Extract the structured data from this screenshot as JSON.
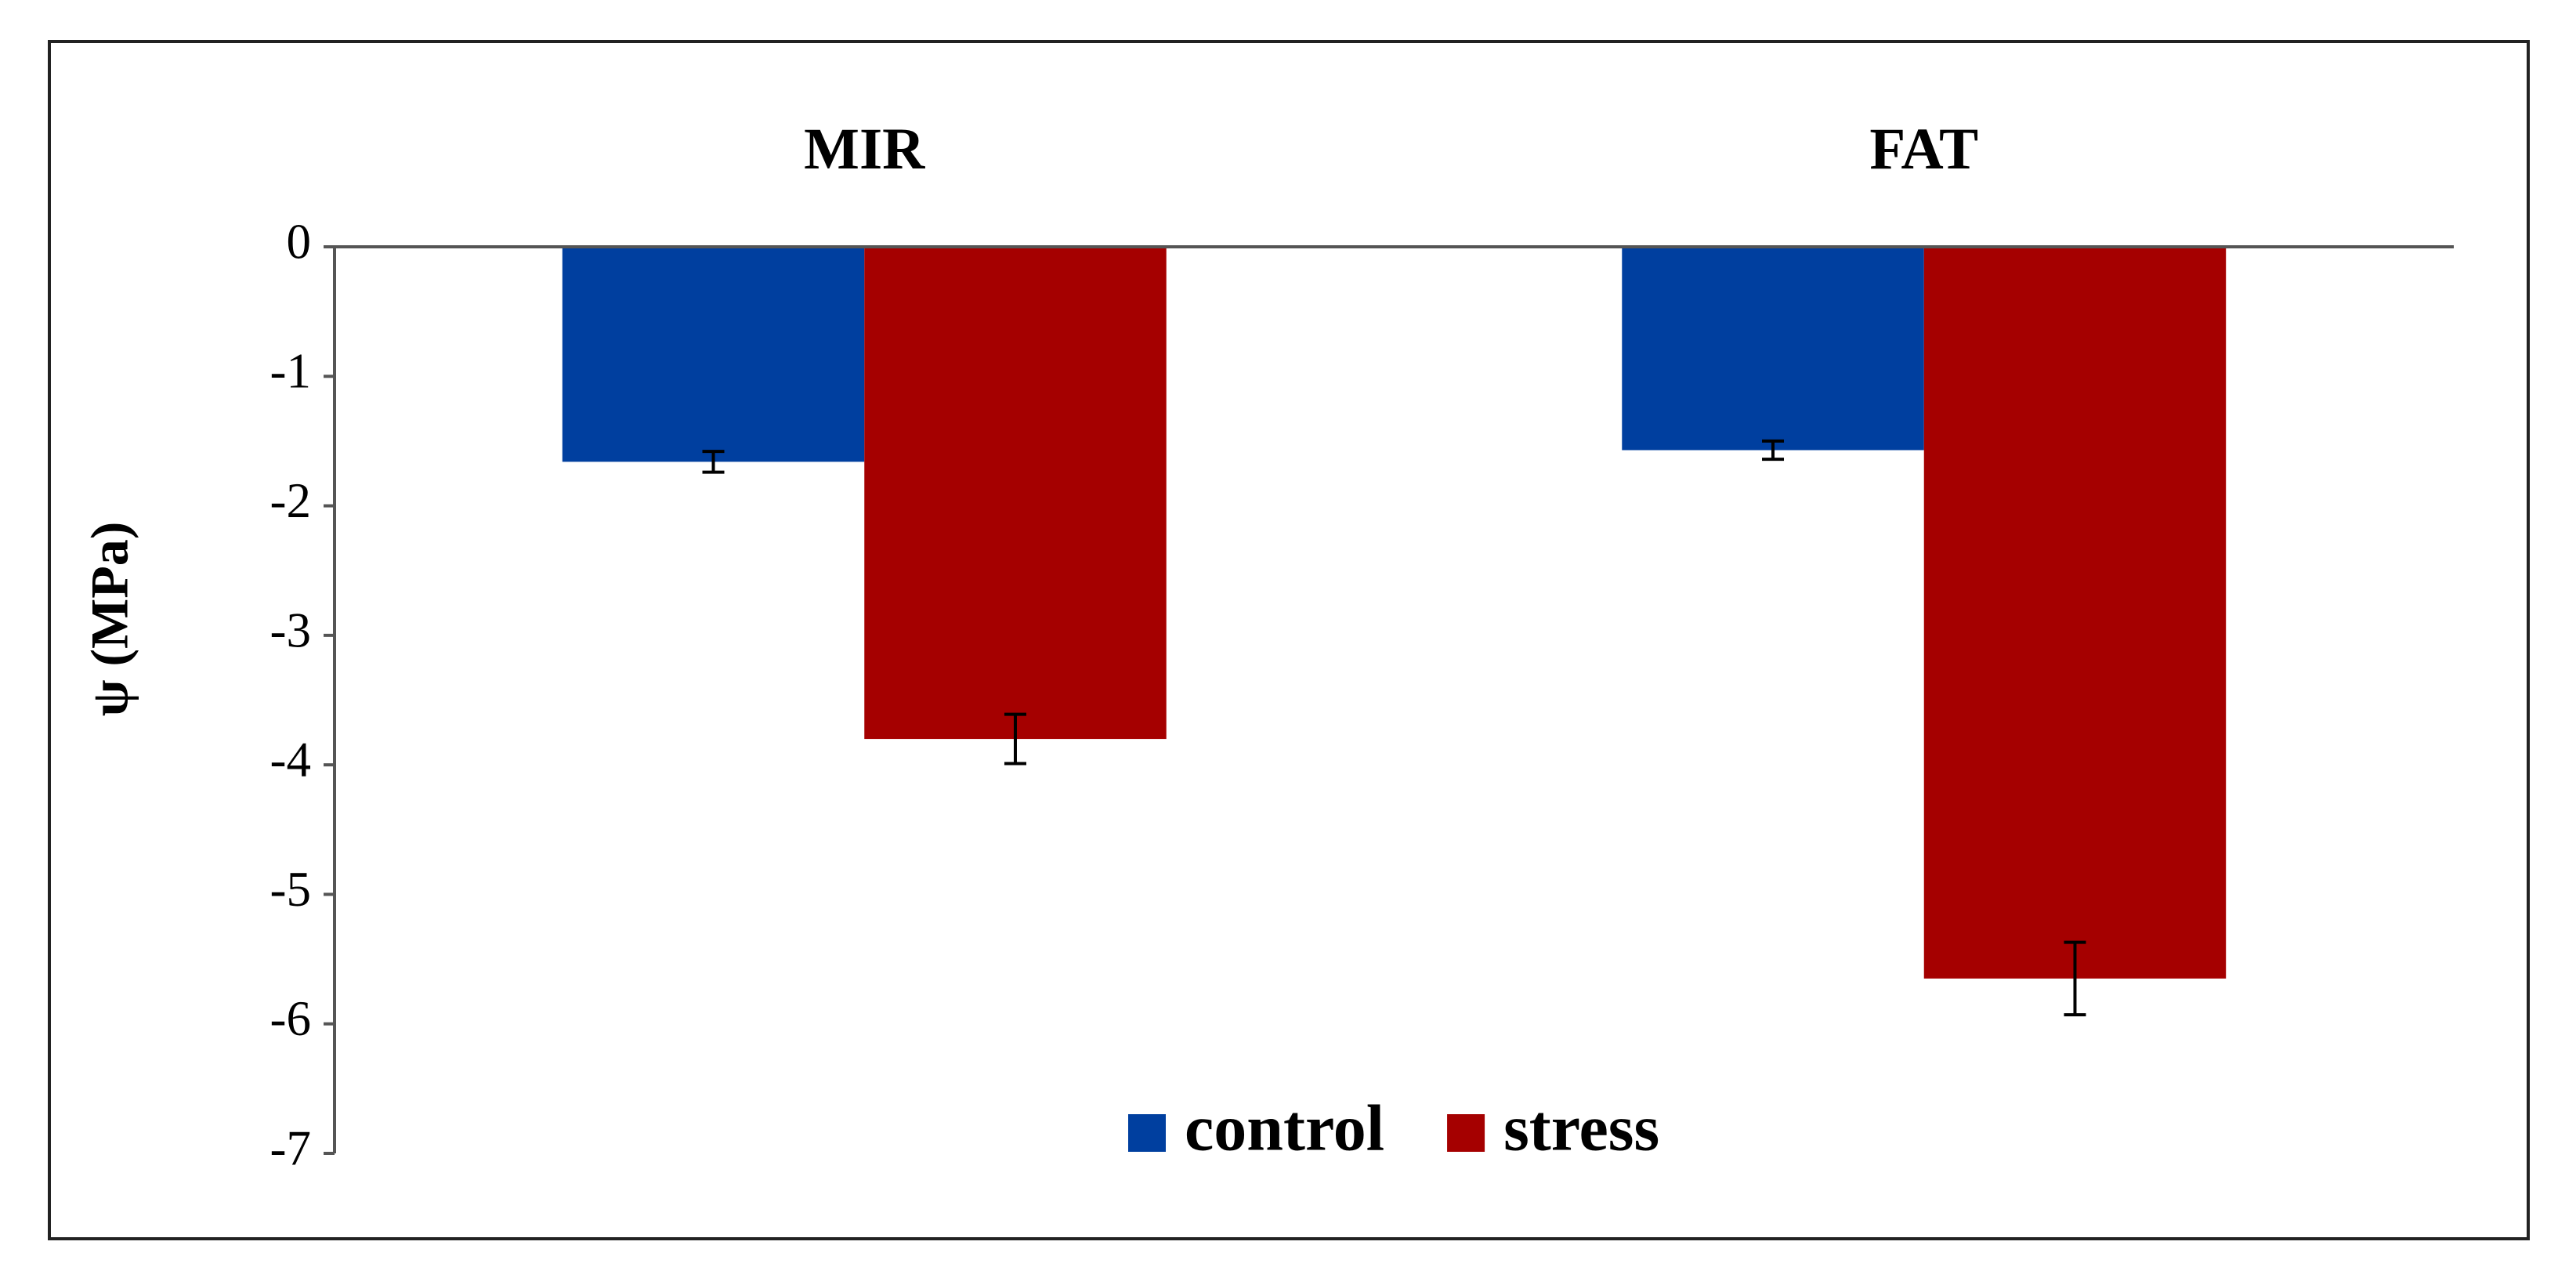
{
  "chart_data": {
    "type": "bar",
    "y_label": "ψ (MPa)",
    "categories": [
      "MIR",
      "FAT"
    ],
    "series": [
      {
        "name": "control",
        "color": "#003f9f",
        "values": [
          -1.66,
          -1.57
        ],
        "errors": [
          0.08,
          0.07
        ]
      },
      {
        "name": "stress",
        "color": "#a50000",
        "values": [
          -3.8,
          -5.65
        ],
        "errors": [
          0.19,
          0.28
        ]
      }
    ],
    "ylim": [
      -7,
      0
    ],
    "yticks": [
      0,
      -1,
      -2,
      -3,
      -4,
      -5,
      -6,
      -7
    ],
    "grid": false,
    "legend": "bottom"
  }
}
